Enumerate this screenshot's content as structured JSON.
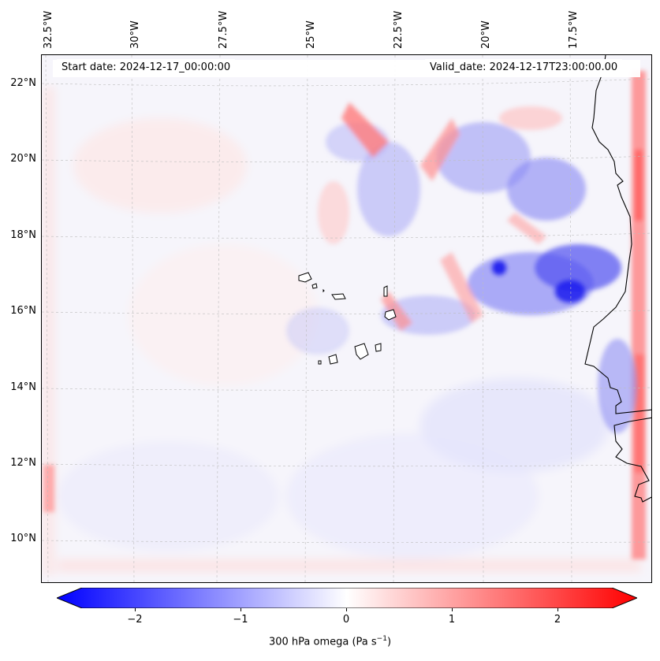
{
  "map": {
    "start_date_text": "Start date: 2024-12-17_00:00:00",
    "valid_date_text": "Valid_date: 2024-12-17T23:00:00.00",
    "longitude_labels": [
      "32.5°W",
      "30°W",
      "27.5°W",
      "25°W",
      "22.5°W",
      "20°W",
      "17.5°W"
    ],
    "latitude_labels": [
      "22°N",
      "20°N",
      "18°N",
      "16°N",
      "14°N",
      "12°N",
      "10°N"
    ],
    "field_colors": {
      "negative": "#0000ff",
      "neutral": "#ffffff",
      "positive": "#ff0000",
      "coastline": "#000000"
    }
  },
  "colorbar": {
    "ticks": [
      "−2",
      "−1",
      "0",
      "1",
      "2"
    ],
    "tick_values": [
      -2,
      -1,
      0,
      1,
      2
    ],
    "range": [
      -2.5,
      2.5
    ],
    "label_main": "300 hPa omega (Pa s",
    "label_sup": "−1",
    "label_end": ")"
  }
}
